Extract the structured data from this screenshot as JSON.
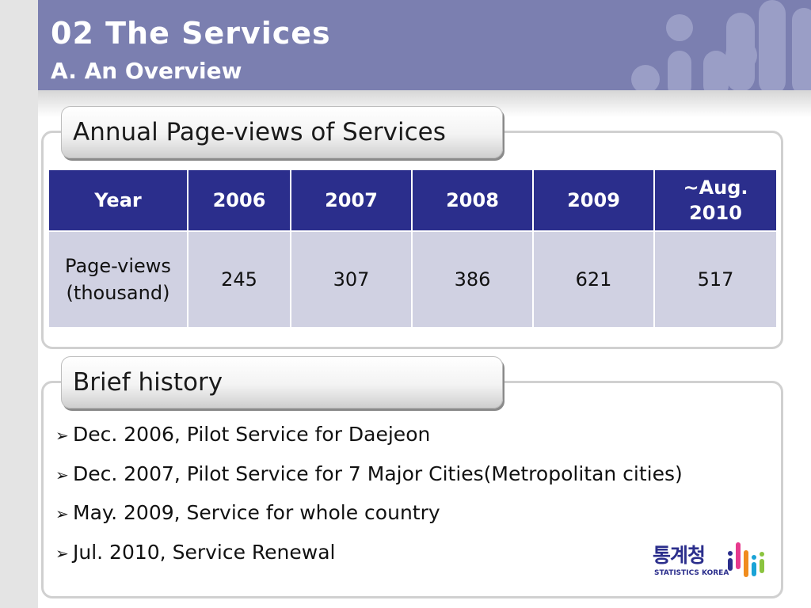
{
  "header": {
    "title": "02 The Services",
    "subtitle": "A. An Overview"
  },
  "section1": {
    "tab_label": "Annual Page-views of Services",
    "table": {
      "headers": [
        "Year",
        "2006",
        "2007",
        "2008",
        "2009",
        "~Aug.\n2010"
      ],
      "row": [
        "Page-views\n(thousand)",
        "245",
        "307",
        "386",
        "621",
        "517"
      ]
    }
  },
  "section2": {
    "tab_label": "Brief history",
    "items": [
      "Dec. 2006, Pilot Service for Daejeon",
      "Dec. 2007, Pilot Service for 7 Major Cities(Metropolitan cities)",
      "May. 2009, Service for whole country",
      "Jul. 2010, Service Renewal"
    ],
    "bullet_icon": "arrow-bullet-icon"
  },
  "logo": {
    "korean": "통계청",
    "english": "STATISTICS KOREA"
  },
  "colors": {
    "header": "#7b7fb0",
    "table_header": "#2b2e8c",
    "table_cell": "#d0d1e2"
  }
}
